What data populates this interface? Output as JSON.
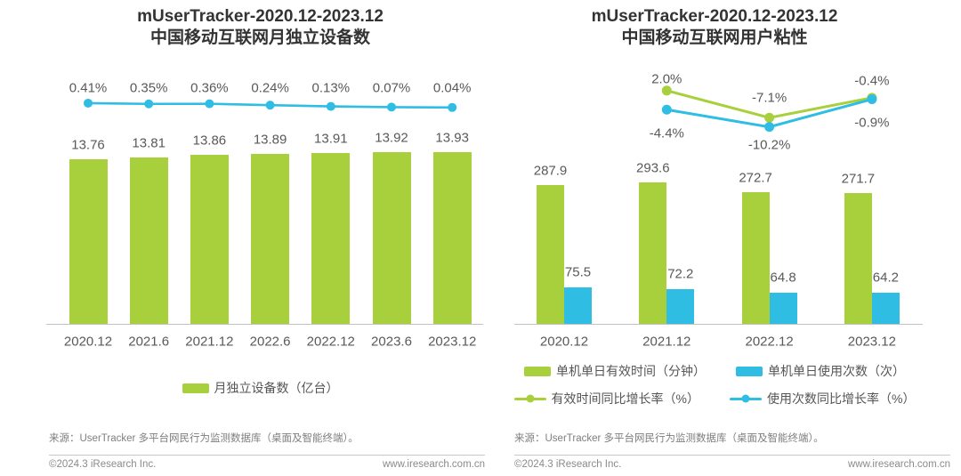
{
  "page": {
    "background": "#ffffff",
    "text_color": "#595959",
    "title_color": "#333333"
  },
  "chart_data": [
    {
      "type": "bar+line",
      "title": "mUserTracker-2020.12-2023.12",
      "subtitle": "中国移动互联网月独立设备数",
      "categories": [
        "2020.12",
        "2021.6",
        "2021.12",
        "2022.6",
        "2022.12",
        "2023.6",
        "2023.12"
      ],
      "series": [
        {
          "name": "月独立设备数（亿台）",
          "type": "bar",
          "color": "#a8cf3c",
          "values": [
            13.76,
            13.81,
            13.86,
            13.89,
            13.91,
            13.92,
            13.93
          ],
          "labels": [
            "13.76",
            "13.81",
            "13.86",
            "13.89",
            "13.91",
            "13.92",
            "13.93"
          ]
        },
        {
          "type": "line",
          "color": "#2fbde4",
          "values": [
            0.41,
            0.35,
            0.36,
            0.24,
            0.13,
            0.07,
            0.04
          ],
          "labels": [
            "0.41%",
            "0.35%",
            "0.36%",
            "0.24%",
            "0.13%",
            "0.07%",
            "0.04%"
          ]
        }
      ],
      "legend": [
        "月独立设备数（亿台）"
      ],
      "layout_hints": {
        "grid": false,
        "legend_position": "bottom",
        "value_labels": "above"
      }
    },
    {
      "type": "grouped-bar+line",
      "title": "mUserTracker-2020.12-2023.12",
      "subtitle": "中国移动互联网用户粘性",
      "categories": [
        "2020.12",
        "2021.12",
        "2022.12",
        "2023.12"
      ],
      "series": [
        {
          "name": "单机单日有效时间（分钟）",
          "type": "bar",
          "color": "#a8cf3c",
          "values": [
            287.9,
            293.6,
            272.7,
            271.7
          ],
          "labels": [
            "287.9",
            "293.6",
            "272.7",
            "271.7"
          ]
        },
        {
          "name": "单机单日使用次数（次）",
          "type": "bar",
          "color": "#2fbde4",
          "values": [
            75.5,
            72.2,
            64.8,
            64.2
          ],
          "labels": [
            "75.5",
            "72.2",
            "64.8",
            "64.2"
          ]
        },
        {
          "name": "有效时间同比增长率（%）",
          "type": "line",
          "color": "#a8cf3c",
          "x": [
            "2021.12",
            "2022.12",
            "2023.12"
          ],
          "values": [
            2.0,
            -7.1,
            -0.4
          ],
          "labels": [
            "2.0%",
            "-7.1%",
            "-0.4%"
          ]
        },
        {
          "name": "使用次数同比增长率（%）",
          "type": "line",
          "color": "#2fbde4",
          "x": [
            "2021.12",
            "2022.12",
            "2023.12"
          ],
          "values": [
            -4.4,
            -10.2,
            -0.9
          ],
          "labels": [
            "-4.4%",
            "-10.2%",
            "-0.9%"
          ]
        }
      ],
      "legend": [
        "单机单日有效时间（分钟）",
        "单机单日使用次数（次）",
        "有效时间同比增长率（%）",
        "使用次数同比增长率（%）"
      ],
      "layout_hints": {
        "grid": false,
        "legend_position": "bottom",
        "value_labels": "above"
      }
    }
  ],
  "footer": {
    "source": "来源：UserTracker 多平台网民行为监测数据库（桌面及智能终端）。",
    "copyright": "©2024.3 iResearch Inc.",
    "website": "www.iresearch.com.cn"
  }
}
